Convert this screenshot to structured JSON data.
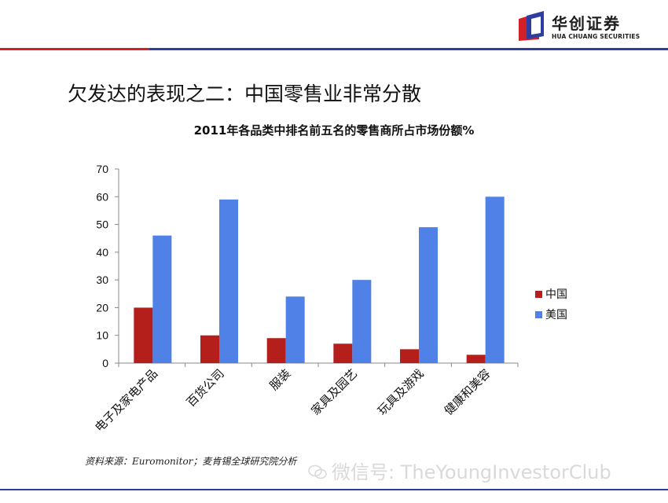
{
  "brand": {
    "name_cn": "华创证券",
    "name_en": "HUA CHUANG SECURITIES"
  },
  "slide_title": "欠发达的表现之二：中国零售业非常分散",
  "source": "资料来源：Euromonitor；麦肯锡全球研究院分析",
  "watermark": "微信号: TheYoungInvestorClub",
  "colors": {
    "china": "#b41f1c",
    "usa": "#4f81e6",
    "accent_red": "#d32027",
    "accent_blue": "#2e3da0"
  },
  "chart_data": {
    "type": "bar",
    "title": "2011年各品类中排名前五名的零售商所占市场份额%",
    "categories": [
      "电子及家电产品",
      "百货公司",
      "服装",
      "家具及园艺",
      "玩具及游戏",
      "健康和美容"
    ],
    "series": [
      {
        "name": "中国",
        "values": [
          20,
          10,
          9,
          7,
          5,
          3
        ]
      },
      {
        "name": "美国",
        "values": [
          46,
          59,
          24,
          30,
          49,
          60
        ]
      }
    ],
    "ylim": [
      0,
      70
    ],
    "yticks": [
      0,
      10,
      20,
      30,
      40,
      50,
      60,
      70
    ],
    "grid": false,
    "legend": "right"
  }
}
